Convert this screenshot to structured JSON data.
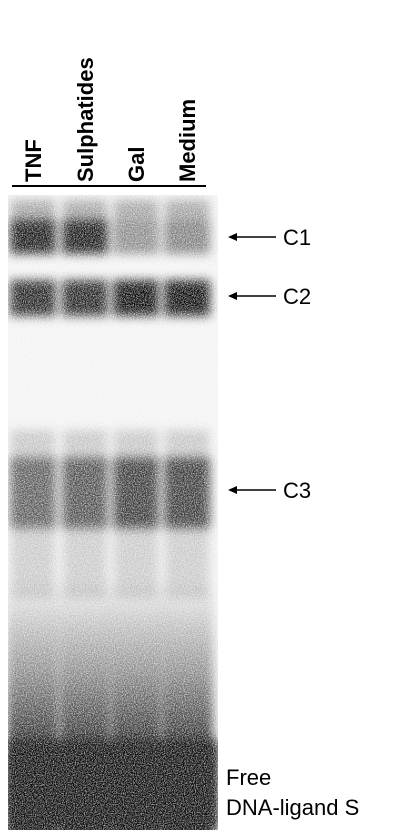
{
  "lanes": [
    "TNF",
    "Sulphatides",
    "Gal",
    "Medium"
  ],
  "bands": [
    "C1",
    "C2",
    "C3"
  ],
  "free_label": [
    "Free",
    "DNA-ligand S"
  ]
}
